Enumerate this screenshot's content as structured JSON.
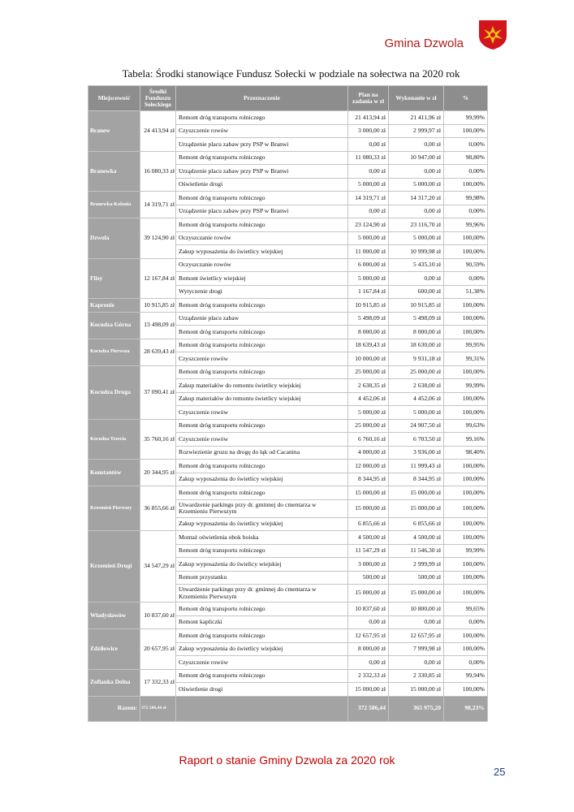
{
  "header": {
    "title": "Gmina Dzwola"
  },
  "caption": "Tabela: Środki stanowiące Fundusz Sołecki w podziale na sołectwa na 2020 rok",
  "table": {
    "columns": [
      "Miejscowość",
      "Środki Funduszu Sołeckiego",
      "Przeznaczenie",
      "Plan na zadania w zł",
      "Wykonanie w zł",
      "%"
    ],
    "groups": [
      {
        "name": "Branew",
        "funds": "24 413,94 zł",
        "items": [
          [
            "Remont dróg transportu rolniczego",
            "21 413,94 zł",
            "21 411,96 zł",
            "99,99%"
          ],
          [
            "Czyszczenie rowów",
            "3 000,00 zł",
            "2 999,97 zł",
            "100,00%"
          ],
          [
            "Urządzenie placu zabaw przy PSP w Branwi",
            "0,00 zł",
            "0,00 zł",
            "0,00%"
          ]
        ]
      },
      {
        "name": "Branewka",
        "funds": "16 080,33 zł",
        "items": [
          [
            "Remont dróg transportu rolniczego",
            "11 080,33 zł",
            "10 947,00 zł",
            "98,80%"
          ],
          [
            "Urządzenie placu zabaw przy PSP w Branwi",
            "0,00 zł",
            "0,00 zł",
            "0,00%"
          ],
          [
            "Oświetlenie drogi",
            "5 000,00 zł",
            "5 000,00 zł",
            "100,00%"
          ]
        ]
      },
      {
        "name": "Branewka-Kolonia",
        "funds": "14 319,71 zł",
        "items": [
          [
            "Remont dróg transportu rolniczego",
            "14 319,71 zł",
            "14 317,20 zł",
            "99,98%"
          ],
          [
            "Urządzenie placu zabaw przy PSP w Branwi",
            "0,00 zł",
            "0,00 zł",
            "0,00%"
          ]
        ]
      },
      {
        "name": "Dzwola",
        "funds": "39 124,90 zł",
        "items": [
          [
            "Remont dróg transportu rolniczego",
            "23 124,90 zł",
            "23 116,70 zł",
            "99,96%"
          ],
          [
            "Oczyszczanie rowów",
            "5 000,00 zł",
            "5 000,00 zł",
            "100,00%"
          ],
          [
            "Zakup wyposażenia do świetlicy wiejskiej",
            "11 000,00 zł",
            "10 999,98 zł",
            "100,00%"
          ]
        ]
      },
      {
        "name": "Flisy",
        "funds": "12 167,84 zł",
        "items": [
          [
            "Oczyszczanie rowów",
            "6 000,00 zł",
            "5 435,10 zł",
            "90,59%"
          ],
          [
            "Remont świetlicy wiejskiej",
            "5 000,00 zł",
            "0,00 zł",
            "0,00%"
          ],
          [
            "Wytyczenie drogi",
            "1 167,84 zł",
            "600,00 zł",
            "51,38%"
          ]
        ]
      },
      {
        "name": "Kapronie",
        "funds": "10 915,85 zł",
        "items": [
          [
            "Remont dróg transportu rolniczego",
            "10 915,85 zł",
            "10 915,85 zł",
            "100,00%"
          ]
        ]
      },
      {
        "name": "Kocudza Górna",
        "funds": "13 498,09 zł",
        "items": [
          [
            "Urządzenie placu zabaw",
            "5 498,09 zł",
            "5 498,09 zł",
            "100,00%"
          ],
          [
            "Remont dróg transportu rolniczego",
            "8 000,00 zł",
            "8 000,00 zł",
            "100,00%"
          ]
        ]
      },
      {
        "name": "Kocudza Pierwsza",
        "funds": "28 639,43 zł",
        "items": [
          [
            "Remont dróg transportu rolniczego",
            "18 639,43 zł",
            "18 630,00 zł",
            "99,95%"
          ],
          [
            "Czyszczenie rowów",
            "10 000,00 zł",
            "9 931,18 zł",
            "99,31%"
          ]
        ]
      },
      {
        "name": "Kocudza Druga",
        "funds": "37 090,41 zł",
        "items": [
          [
            "Remont dróg transportu rolniczego",
            "25 000,00 zł",
            "25 000,00 zł",
            "100,00%"
          ],
          [
            "Zakup materiałów do remontu świetlicy wiejskiej",
            "2 638,35 zł",
            "2 638,00 zł",
            "99,99%"
          ],
          [
            "Zakup materiałów do remontu świetlicy wiejskiej",
            "4 452,06 zł",
            "4 452,06 zł",
            "100,00%"
          ],
          [
            "Czyszczenie rowów",
            "5 000,00 zł",
            "5 000,00 zł",
            "100,00%"
          ]
        ]
      },
      {
        "name": "Kocudza Trzecia",
        "funds": "35 760,16 zł",
        "items": [
          [
            "Remont dróg transportu rolniczego",
            "25 000,00 zł",
            "24 907,50 zł",
            "99,63%"
          ],
          [
            "Czyszczenie rowów",
            "6 760,16 zł",
            "6 703,50 zł",
            "99,16%"
          ],
          [
            "Rozwiezienie gruzu na drogę do łąk od Cacanina",
            "4 000,00 zł",
            "3 936,00 zł",
            "98,40%"
          ]
        ]
      },
      {
        "name": "Konstantów",
        "funds": "20 344,95 zł",
        "items": [
          [
            "Remont dróg transportu rolniczego",
            "12 000,00 zł",
            "11 999,43 zł",
            "100,00%"
          ],
          [
            "Zakup wyposażenia do świetlicy wiejskiej",
            "8 344,95 zł",
            "8 344,95 zł",
            "100,00%"
          ]
        ]
      },
      {
        "name": "Krzemień Pierwszy",
        "funds": "36 855,66 zł",
        "items": [
          [
            "Remont dróg transportu rolniczego",
            "15 000,00 zł",
            "15 000,00 zł",
            "100,00%"
          ],
          [
            "Utwardzenie parkingu przy dr. gminnej do cmentarza w Krzemieniu Pierwszym",
            "15 000,00 zł",
            "15 000,00 zł",
            "100,00%"
          ],
          [
            "Zakup wyposażenia do świetlicy wiejskiej",
            "6 855,66 zł",
            "6 855,66 zł",
            "100,00%"
          ]
        ]
      },
      {
        "name": "Krzemień Drugi",
        "funds": "34 547,29 zł",
        "items": [
          [
            "Montaż oświetlenia obok boiska",
            "4 500,00 zł",
            "4 500,00 zł",
            "100,00%"
          ],
          [
            "Remont dróg transportu rolniczego",
            "11 547,29 zł",
            "11 546,30 zł",
            "99,99%"
          ],
          [
            "Zakup wyposażenia do świelicy wiejskiej",
            "3 000,00 zł",
            "2 999,99 zł",
            "100,00%"
          ],
          [
            "Remont przystanku",
            "500,00 zł",
            "500,00 zł",
            "100,00%"
          ],
          [
            "Utwardzenie parkingu przy dr. gminnej do cmentarza w Krzemieniu Pierwszym",
            "15 000,00 zł",
            "15 000,00 zł",
            "100,00%"
          ]
        ]
      },
      {
        "name": "Władysławów",
        "funds": "10 837,60 zł",
        "items": [
          [
            "Remont dróg transportu rolniczego",
            "10 837,60 zł",
            "10 800,00 zł",
            "99,65%"
          ],
          [
            "Remont kapliczki",
            "0,00 zł",
            "0,00 zł",
            "0,00%"
          ]
        ]
      },
      {
        "name": "Zdziłowice",
        "funds": "20 657,95 zł",
        "items": [
          [
            "Remont dróg transportu rolniczego",
            "12 657,95 zł",
            "12 657,95 zł",
            "100,00%"
          ],
          [
            "Zakup wyposażenia do świetlicy wiejskiej",
            "8 000,00 zł",
            "7 999,98 zł",
            "100,00%"
          ],
          [
            "Czyszczenie rowów",
            "0,00 zł",
            "0,00 zł",
            "0,00%"
          ]
        ]
      },
      {
        "name": "Zofianka Dolna",
        "funds": "17 332,33 zł",
        "items": [
          [
            "Remont dróg transportu rolniczego",
            "2 332,33 zł",
            "2 330,85 zł",
            "99,94%"
          ],
          [
            "Oświetlenie drogi",
            "15 000,00 zł",
            "15 000,00 zł",
            "100,00%"
          ]
        ]
      }
    ],
    "total": {
      "label": "Razem:",
      "funds": "372 586,44 zł",
      "plan": "372 586,44",
      "done": "365 975,20",
      "pct": "98,23%"
    }
  },
  "footer": {
    "text": "Raport o stanie Gminy Dzwola za 2020 rok",
    "page": "25"
  }
}
